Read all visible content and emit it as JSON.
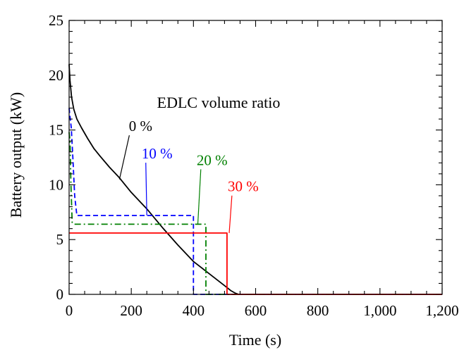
{
  "chart_data": {
    "type": "line",
    "xlabel": "Time (s)",
    "ylabel": "Battery output (kW)",
    "xlim": [
      0,
      1200
    ],
    "ylim": [
      0,
      25
    ],
    "x_ticks": [
      0,
      200,
      400,
      600,
      800,
      1000,
      1200
    ],
    "x_tick_labels": [
      "0",
      "200",
      "400",
      "600",
      "800",
      "1,000",
      "1,200"
    ],
    "y_ticks": [
      0,
      5,
      10,
      15,
      20,
      25
    ],
    "y_tick_labels": [
      "0",
      "5",
      "10",
      "15",
      "20",
      "25"
    ],
    "grid": false,
    "legend_title": "EDLC volume ratio",
    "series": [
      {
        "name": "0 %",
        "color": "#000000",
        "style": "solid",
        "x": [
          0,
          3,
          8,
          15,
          25,
          40,
          60,
          80,
          100,
          130,
          160,
          200,
          250,
          300,
          350,
          400,
          450,
          500,
          520,
          535,
          545,
          560,
          600,
          800,
          1000,
          1200
        ],
        "y": [
          21.0,
          19.5,
          18.0,
          16.9,
          16.0,
          15.2,
          14.2,
          13.3,
          12.6,
          11.6,
          10.7,
          9.3,
          7.8,
          6.1,
          4.5,
          3.0,
          1.9,
          0.8,
          0.35,
          0.1,
          0.0,
          0.0,
          0.0,
          0.0,
          0.0,
          0.0
        ]
      },
      {
        "name": "10 %",
        "color": "#0000ff",
        "style": "dashed",
        "x": [
          0,
          3,
          7,
          12,
          18,
          25,
          35,
          200,
          400,
          400,
          420,
          600,
          1200
        ],
        "y": [
          17.0,
          16.2,
          15.2,
          12.5,
          9.0,
          7.2,
          7.2,
          7.2,
          7.2,
          0.0,
          0.0,
          0.0,
          0.0
        ]
      },
      {
        "name": "20 %",
        "color": "#008000",
        "style": "dashdot",
        "x": [
          0,
          3,
          6,
          10,
          16,
          200,
          440,
          440,
          460,
          600,
          1200
        ],
        "y": [
          14.8,
          14.0,
          10.0,
          6.5,
          6.4,
          6.4,
          6.4,
          0.0,
          0.0,
          0.0,
          0.0
        ]
      },
      {
        "name": "30 %",
        "color": "#ff0000",
        "style": "solid",
        "x": [
          0,
          508,
          508,
          600,
          1200
        ],
        "y": [
          5.6,
          5.6,
          0.0,
          0.0,
          0.0
        ]
      }
    ],
    "annotations": [
      {
        "text": "0 %",
        "series": 0,
        "color": "#000000",
        "label_x": 230,
        "label_y": 14.9,
        "point_x": 162,
        "point_y": 10.5
      },
      {
        "text": "10 %",
        "series": 1,
        "color": "#0000ff",
        "label_x": 283,
        "label_y": 12.4,
        "point_x": 250,
        "point_y": 7.2
      },
      {
        "text": "20 %",
        "series": 2,
        "color": "#008000",
        "label_x": 460,
        "label_y": 11.8,
        "point_x": 414,
        "point_y": 6.4
      },
      {
        "text": "30 %",
        "series": 3,
        "color": "#ff0000",
        "label_x": 560,
        "label_y": 9.4,
        "point_x": 515,
        "point_y": 5.6
      }
    ]
  }
}
